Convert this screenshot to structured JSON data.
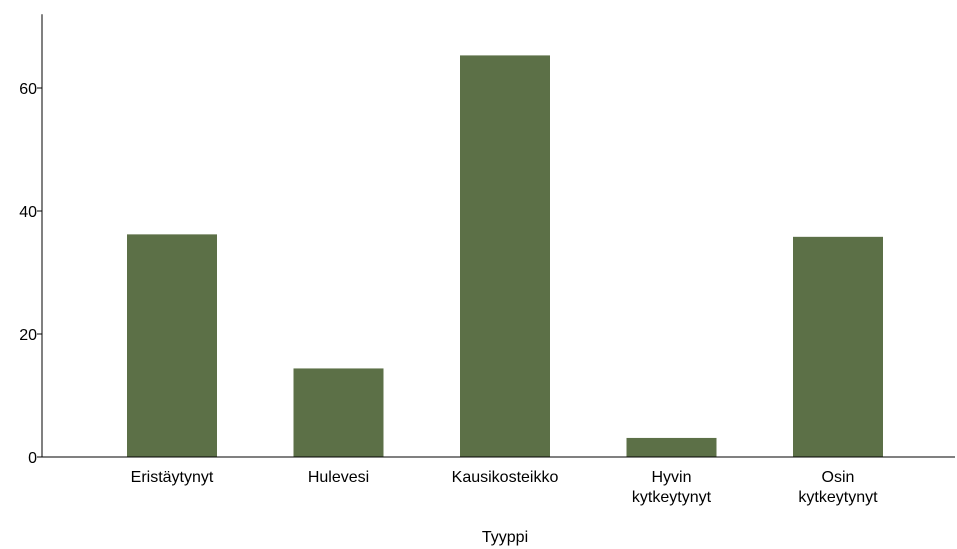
{
  "chart_data": {
    "type": "bar",
    "categories": [
      "Eristäytynyt",
      "Hulevesi",
      "Kausikosteikko",
      "Hyvin kytkeytynyt",
      "Osin kytkeytynyt"
    ],
    "category_lines": [
      [
        "Eristäytynyt"
      ],
      [
        "Hulevesi"
      ],
      [
        "Kausikosteikko"
      ],
      [
        "Hyvin",
        "kytkeytynyt"
      ],
      [
        "Osin",
        "kytkeytynyt"
      ]
    ],
    "values": [
      36.2,
      14.4,
      65.3,
      3.1,
      35.8
    ],
    "xlabel": "Tyyppi",
    "ylabel": "",
    "ylim": [
      0,
      72
    ],
    "yticks": [
      0,
      20,
      40,
      60
    ],
    "grid": false,
    "bar_color": "#5c7047"
  }
}
